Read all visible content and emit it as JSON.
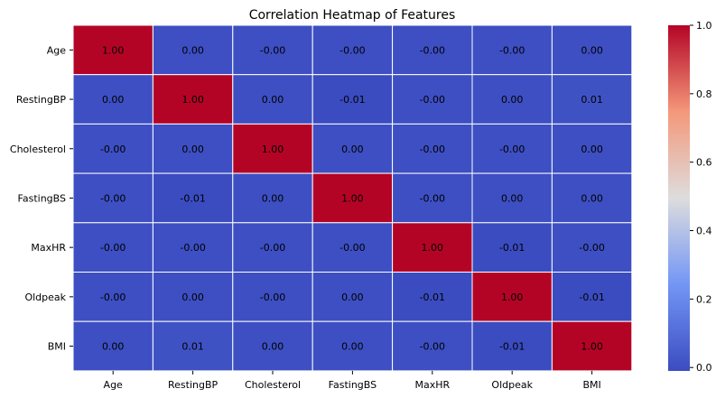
{
  "chart_data": {
    "type": "heatmap",
    "title": "Correlation Heatmap of Features",
    "x_labels": [
      "Age",
      "RestingBP",
      "Cholesterol",
      "FastingBS",
      "MaxHR",
      "Oldpeak",
      "BMI"
    ],
    "y_labels": [
      "Age",
      "RestingBP",
      "Cholesterol",
      "FastingBS",
      "MaxHR",
      "Oldpeak",
      "BMI"
    ],
    "values": [
      [
        1.0,
        0.0,
        -0.0,
        -0.0,
        -0.0,
        -0.0,
        0.0
      ],
      [
        0.0,
        1.0,
        0.0,
        -0.01,
        -0.0,
        0.0,
        0.01
      ],
      [
        -0.0,
        0.0,
        1.0,
        0.0,
        -0.0,
        -0.0,
        0.0
      ],
      [
        -0.0,
        -0.01,
        0.0,
        1.0,
        -0.0,
        0.0,
        0.0
      ],
      [
        -0.0,
        -0.0,
        -0.0,
        -0.0,
        1.0,
        -0.01,
        -0.0
      ],
      [
        -0.0,
        0.0,
        -0.0,
        0.0,
        -0.01,
        1.0,
        -0.01
      ],
      [
        0.0,
        0.01,
        0.0,
        0.0,
        -0.0,
        -0.01,
        1.0
      ]
    ],
    "annotations": [
      [
        "1.00",
        "0.00",
        "-0.00",
        "-0.00",
        "-0.00",
        "-0.00",
        "0.00"
      ],
      [
        "0.00",
        "1.00",
        "0.00",
        "-0.01",
        "-0.00",
        "0.00",
        "0.01"
      ],
      [
        "-0.00",
        "0.00",
        "1.00",
        "0.00",
        "-0.00",
        "-0.00",
        "0.00"
      ],
      [
        "-0.00",
        "-0.01",
        "0.00",
        "1.00",
        "-0.00",
        "0.00",
        "0.00"
      ],
      [
        "-0.00",
        "-0.00",
        "-0.00",
        "-0.00",
        "1.00",
        "-0.01",
        "-0.00"
      ],
      [
        "-0.00",
        "0.00",
        "-0.00",
        "0.00",
        "-0.01",
        "1.00",
        "-0.01"
      ],
      [
        "0.00",
        "0.01",
        "0.00",
        "0.00",
        "-0.00",
        "-0.01",
        "1.00"
      ]
    ],
    "colormap": "coolwarm",
    "vmin": -0.01,
    "vmax": 1.0,
    "colorbar_ticks": [
      "0.0",
      "0.2",
      "0.4",
      "0.6",
      "0.8",
      "1.0"
    ],
    "colorbar_tick_values": [
      0.0,
      0.2,
      0.4,
      0.6,
      0.8,
      1.0
    ],
    "colors": {
      "low": "#3b4cc0",
      "mid": "#dddddd",
      "high": "#b40426",
      "annotation_text": "#ffffff",
      "cell_border": "#ffffff"
    }
  }
}
